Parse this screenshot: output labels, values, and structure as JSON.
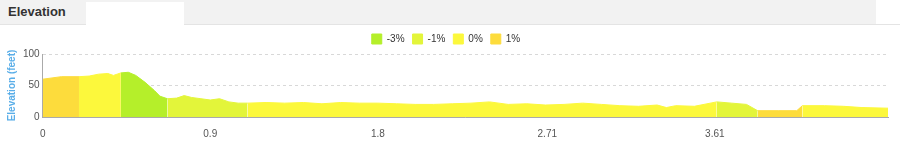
{
  "tab": "Elevation",
  "chart_data": {
    "type": "area",
    "y_label": "Elevation (feet)",
    "x": [
      0,
      0.1,
      0.195,
      0.25,
      0.3,
      0.35,
      0.38,
      0.42,
      0.46,
      0.5,
      0.55,
      0.6,
      0.63,
      0.67,
      0.72,
      0.76,
      0.8,
      0.85,
      0.9,
      0.95,
      1.0,
      1.05,
      1.1,
      1.2,
      1.3,
      1.4,
      1.5,
      1.6,
      1.7,
      1.8,
      1.9,
      2.0,
      2.1,
      2.2,
      2.3,
      2.4,
      2.5,
      2.6,
      2.7,
      2.8,
      2.9,
      3.0,
      3.1,
      3.2,
      3.3,
      3.35,
      3.4,
      3.5,
      3.62,
      3.7,
      3.78,
      3.84,
      3.95,
      4.05,
      4.08,
      4.2,
      4.3,
      4.4,
      4.54
    ],
    "series": [
      {
        "name": "-3%",
        "color": "#b5ef2a",
        "values": [
          null,
          null,
          null,
          null,
          null,
          null,
          null,
          70,
          71,
          66,
          55,
          42,
          33,
          29,
          null,
          null,
          null,
          null,
          null,
          null,
          null,
          null,
          null,
          null,
          null,
          null,
          null,
          null,
          null,
          null,
          null,
          null,
          null,
          null,
          null,
          null,
          null,
          null,
          null,
          null,
          null,
          null,
          null,
          null,
          null,
          null,
          null,
          null,
          null,
          null,
          null,
          null,
          null,
          null,
          null,
          null,
          null,
          null,
          null
        ]
      },
      {
        "name": "-1%",
        "color": "#e3f53a",
        "values": [
          null,
          null,
          null,
          null,
          null,
          null,
          null,
          null,
          null,
          null,
          null,
          null,
          null,
          29,
          30,
          34,
          31,
          29,
          27,
          29,
          24,
          22,
          22,
          null,
          null,
          null,
          null,
          null,
          null,
          null,
          null,
          null,
          null,
          null,
          null,
          null,
          null,
          null,
          null,
          null,
          null,
          null,
          null,
          null,
          null,
          null,
          null,
          null,
          24,
          22,
          20,
          10,
          null,
          null,
          null,
          null,
          null,
          null,
          null
        ]
      },
      {
        "name": "0%",
        "color": "#fcf83c",
        "values": [
          null,
          null,
          64,
          65,
          68,
          69,
          66,
          70,
          null,
          null,
          null,
          null,
          null,
          null,
          null,
          null,
          null,
          null,
          null,
          null,
          null,
          null,
          22,
          23,
          22,
          23,
          21,
          23,
          22,
          22,
          21,
          20,
          20,
          21,
          22,
          24,
          20,
          21,
          19,
          20,
          22,
          20,
          18,
          17,
          19,
          15,
          18,
          17,
          24,
          null,
          null,
          null,
          null,
          null,
          18,
          18,
          17,
          15,
          14
        ]
      },
      {
        "name": "1%",
        "color": "#fddc3c",
        "values": [
          60,
          64,
          64,
          null,
          null,
          null,
          null,
          null,
          null,
          null,
          null,
          null,
          null,
          null,
          null,
          null,
          null,
          null,
          null,
          null,
          null,
          null,
          null,
          null,
          null,
          null,
          null,
          null,
          null,
          null,
          null,
          null,
          null,
          null,
          null,
          null,
          null,
          null,
          null,
          null,
          null,
          null,
          null,
          null,
          null,
          null,
          null,
          null,
          null,
          null,
          null,
          10,
          10,
          10,
          18,
          null,
          null,
          null,
          null
        ]
      }
    ],
    "xlim": [
      0,
      4.54
    ],
    "xticks": [
      0,
      0.9,
      1.8,
      2.71,
      3.61
    ],
    "ylim": [
      0,
      100
    ],
    "yticks": [
      0,
      50,
      100
    ],
    "grid": true,
    "legend": "top"
  }
}
